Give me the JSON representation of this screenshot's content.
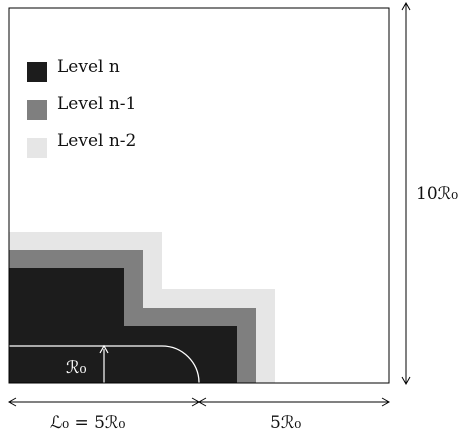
{
  "legend": {
    "items": [
      {
        "label": "Level n",
        "color": "#1c1c1c"
      },
      {
        "label": "Level n-1",
        "color": "#7f7f7f"
      },
      {
        "label": "Level n-2",
        "color": "#e6e6e6"
      }
    ]
  },
  "labels": {
    "radius": "ℛ₀",
    "height": "10ℛ₀",
    "left_width": "ℒ₀ = 5ℛ₀",
    "right_width": "5ℛ₀"
  },
  "colors": {
    "frame": "#000000",
    "background": "#ffffff",
    "arc": "#ffffff"
  }
}
